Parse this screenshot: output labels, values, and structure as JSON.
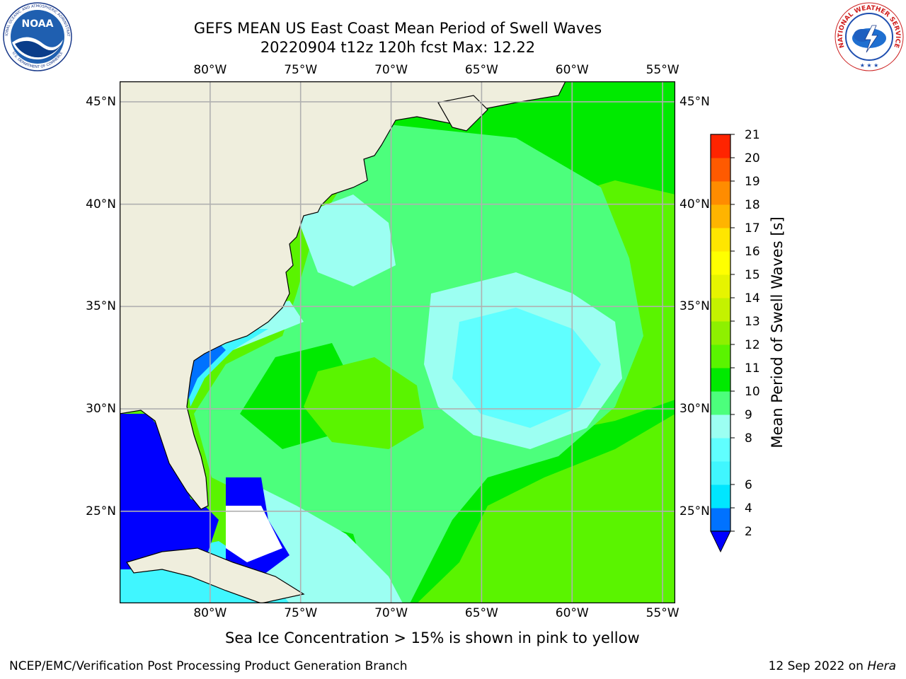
{
  "header": {
    "title_line1": "GEFS MEAN US East Coast Mean Period of Swell Waves",
    "title_line2": "20220904 t12z 120h fcst   Max: 12.22"
  },
  "logos": {
    "left": "NOAA",
    "left_ring_text": "NATIONAL OCEANIC AND ATMOSPHERIC ADMINISTRATION",
    "left_ring_text_bottom": "U.S. DEPARTMENT OF COMMERCE",
    "right_ring_text": "NATIONAL WEATHER SERVICE"
  },
  "map": {
    "lon_labels": [
      "80°W",
      "75°W",
      "70°W",
      "65°W",
      "60°W",
      "55°W"
    ],
    "lat_labels": [
      "45°N",
      "40°N",
      "35°N",
      "30°N",
      "25°N"
    ],
    "lon_values": [
      -80,
      -75,
      -70,
      -65,
      -60,
      -55
    ],
    "lat_values": [
      45,
      40,
      35,
      30,
      25
    ],
    "extent": {
      "lon_min": -85,
      "lon_max": -54.3,
      "lat_min": 20.5,
      "lat_max": 46
    },
    "colors": {
      "land": "#efeedd",
      "grid": "#b0b0b0",
      "coast": "#000000"
    }
  },
  "colorbar": {
    "label": "Mean Period of Swell Waves [s]",
    "levels": [
      2,
      4,
      6,
      7,
      8,
      9,
      10,
      11,
      12,
      13,
      14,
      15,
      16,
      17,
      18,
      19,
      20,
      21
    ],
    "tick_labels": [
      "2",
      "4",
      "6",
      "8",
      "9",
      "10",
      "11",
      "12",
      "13",
      "14",
      "15",
      "16",
      "17",
      "18",
      "19",
      "20",
      "21"
    ],
    "colors": [
      "#0072ff",
      "#00e6ff",
      "#40f6ff",
      "#60ffff",
      "#9cfff2",
      "#4cff7c",
      "#00ea00",
      "#5af400",
      "#8ef000",
      "#c4f200",
      "#e6f400",
      "#ffff00",
      "#ffe600",
      "#ffb400",
      "#ff8c00",
      "#ff5a00",
      "#ff2400",
      "#ff0000"
    ],
    "under_color": "#0000ff"
  },
  "footer": {
    "note": "Sea Ice Concentration > 15% is shown in pink to yellow",
    "credit": "NCEP/EMC/Verification Post Processing Product Generation Branch",
    "date": "12 Sep 2022 on ",
    "host": "Hera"
  }
}
